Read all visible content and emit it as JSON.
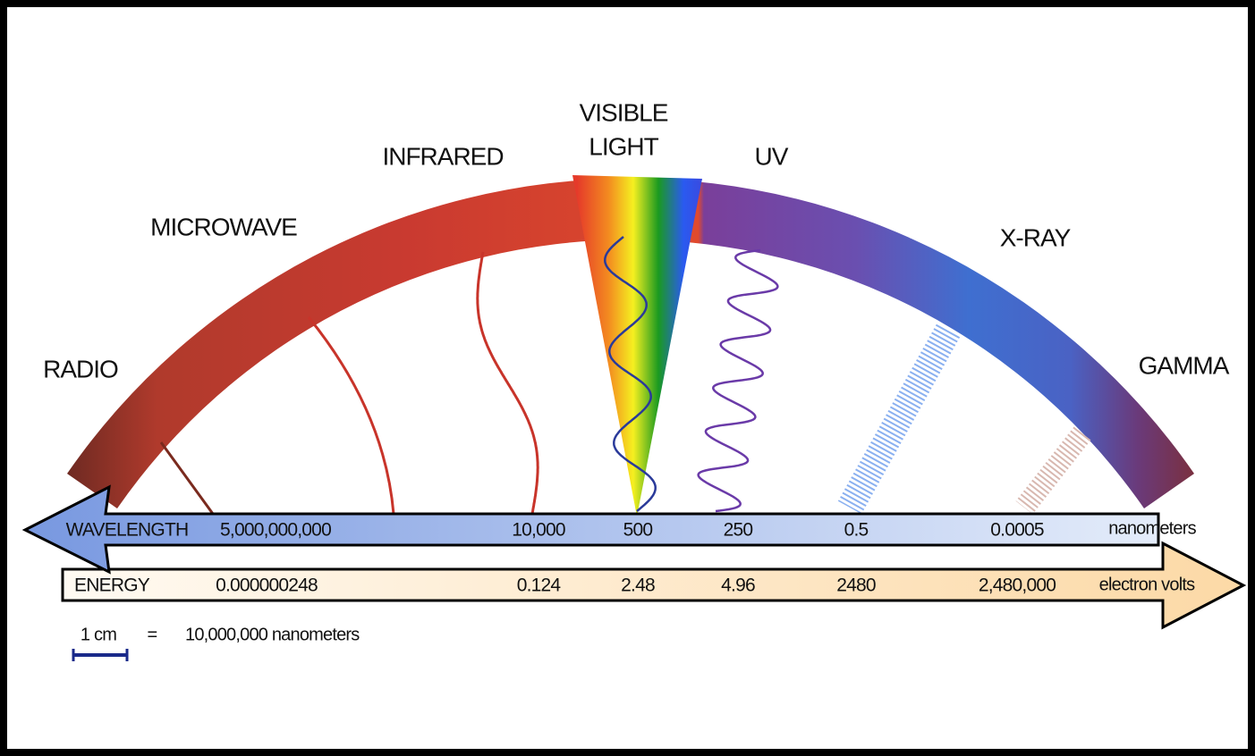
{
  "bands": [
    {
      "lines": [
        "RADIO"
      ]
    },
    {
      "lines": [
        "MICROWAVE"
      ]
    },
    {
      "lines": [
        "INFRARED"
      ]
    },
    {
      "lines": [
        "VISIBLE",
        "LIGHT"
      ]
    },
    {
      "lines": [
        "UV"
      ]
    },
    {
      "lines": [
        "X-RAY"
      ]
    },
    {
      "lines": [
        "GAMMA"
      ]
    }
  ],
  "wavelength": {
    "label": "WAVELENGTH",
    "values": [
      "5,000,000,000",
      "10,000",
      "500",
      "250",
      "0.5",
      "0.0005"
    ],
    "unit": "nanometers"
  },
  "energy": {
    "label": "ENERGY",
    "values": [
      "0.000000248",
      "0.124",
      "2.48",
      "4.96",
      "2480",
      "2,480,000"
    ],
    "unit": "electron volts"
  },
  "scale": {
    "length": "1 cm",
    "equals": "=",
    "value": "10,000,000 nanometers"
  }
}
